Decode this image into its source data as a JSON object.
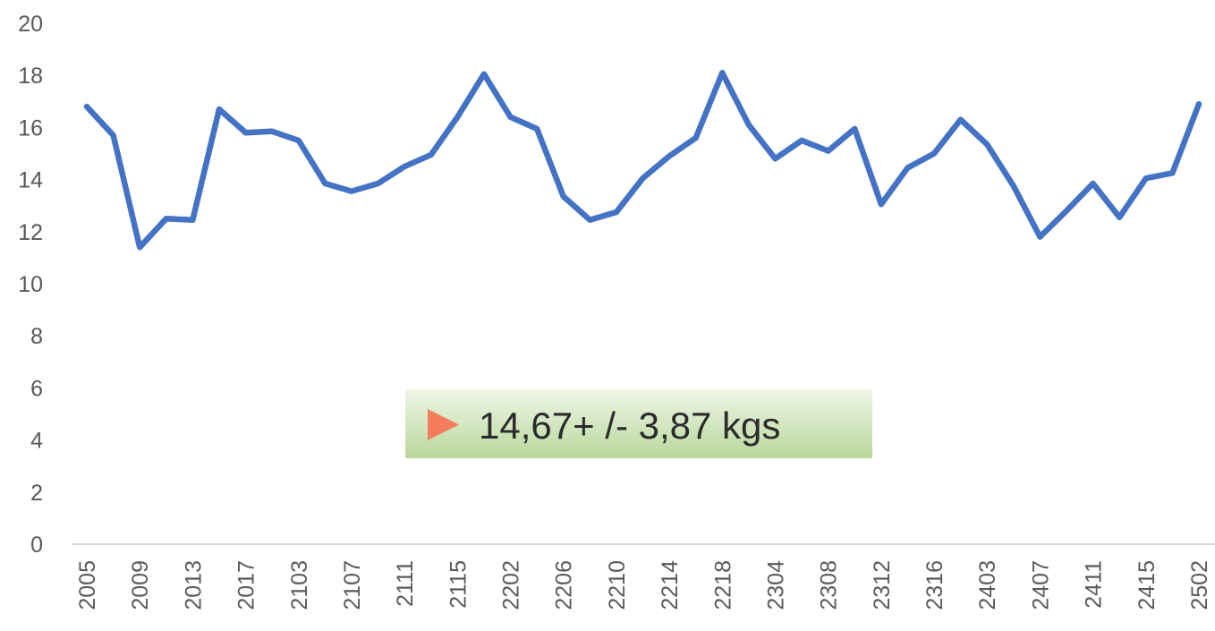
{
  "chart_data": {
    "type": "line",
    "categories": [
      "2005",
      null,
      "2009",
      null,
      "2013",
      null,
      "2017",
      null,
      "2103",
      null,
      "2107",
      null,
      "2111",
      null,
      "2115",
      null,
      "2202",
      null,
      "2206",
      null,
      "2210",
      null,
      "2214",
      null,
      "2218",
      null,
      "2304",
      null,
      "2308",
      null,
      "2312",
      null,
      "2316",
      null,
      "2403",
      null,
      "2407",
      null,
      "2411",
      null,
      "2415",
      null,
      "2502"
    ],
    "series": [
      {
        "name": null,
        "color": "#4472c4",
        "values": [
          16.8,
          15.7,
          11.4,
          12.5,
          12.45,
          16.7,
          15.8,
          15.85,
          15.5,
          13.85,
          13.55,
          13.85,
          14.5,
          14.95,
          16.4,
          18.05,
          16.4,
          15.95,
          13.35,
          12.45,
          12.75,
          14.05,
          14.9,
          15.6,
          18.1,
          16.1,
          14.8,
          15.5,
          15.1,
          15.95,
          13.05,
          14.45,
          15.0,
          16.3,
          15.35,
          13.75,
          11.8,
          12.8,
          13.85,
          12.55,
          14.05,
          14.25,
          16.9
        ]
      }
    ],
    "ylim": [
      0,
      20
    ],
    "yticks": [
      0,
      2,
      4,
      6,
      8,
      10,
      12,
      14,
      16,
      18,
      20
    ],
    "grid": false,
    "annotation": "14,67+ /- 3,87 kgs"
  }
}
